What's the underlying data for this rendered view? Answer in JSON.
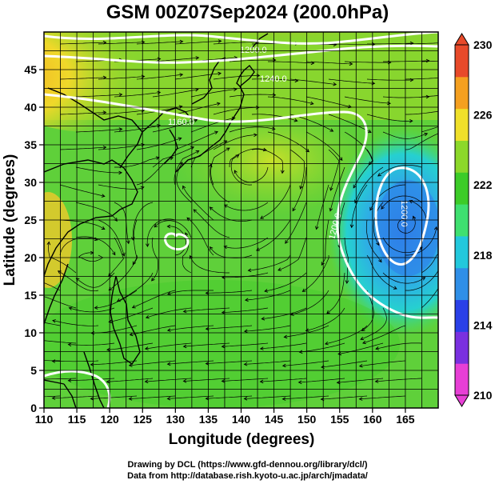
{
  "title": "GSM 00Z07Sep2024 (200.0hPa)",
  "credits": {
    "line1": "Drawing by DCL (https://www.gfd-dennou.org/library/dcl/)",
    "line2": "Data from http://database.rish.kyoto-u.ac.jp/arch/jmadata/"
  },
  "map": {
    "xlabel": "Longitude (degrees)",
    "ylabel": "Latitude  (degrees)",
    "xlim": [
      110,
      170
    ],
    "ylim": [
      0,
      50
    ],
    "xticks": [
      "110",
      "115",
      "120",
      "125",
      "130",
      "135",
      "140",
      "145",
      "150",
      "155",
      "160",
      "165"
    ],
    "yticks": [
      "0",
      "5",
      "10",
      "15",
      "20",
      "25",
      "30",
      "35",
      "40",
      "45"
    ],
    "contour_labels": [
      "1200.0",
      "1240.0",
      "1160.0",
      "1200.0",
      "1200.0"
    ],
    "colorbar": {
      "ticks": [
        "230",
        "226",
        "222",
        "218",
        "214",
        "210"
      ],
      "min": 210,
      "max": 230,
      "colors": [
        "#e83fd6",
        "#7a30e0",
        "#2a40e8",
        "#2f8fe8",
        "#22c8dc",
        "#3fe070",
        "#3ccc28",
        "#8cd82a",
        "#f0e02a",
        "#f5a020",
        "#e84a2a"
      ]
    }
  }
}
